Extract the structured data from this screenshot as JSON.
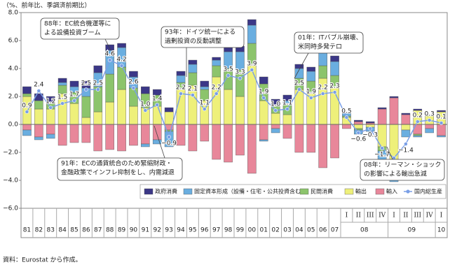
{
  "chart_data": {
    "type": "bar",
    "y_axis_label": "（%、前年比、季調済前期比）",
    "source": "資料：Eurostat から作成。",
    "categories": [
      "81",
      "82",
      "83",
      "84",
      "85",
      "86",
      "87",
      "88",
      "89",
      "90",
      "91",
      "92",
      "93",
      "94",
      "95",
      "96",
      "97",
      "98",
      "99",
      "00",
      "01",
      "02",
      "03",
      "04",
      "05",
      "06",
      "07",
      [
        "08",
        "I"
      ],
      [
        "08",
        "II"
      ],
      [
        "08",
        "III"
      ],
      [
        "08",
        "IV"
      ],
      [
        "09",
        "I"
      ],
      [
        "09",
        "II"
      ],
      [
        "09",
        "III"
      ],
      [
        "09",
        "IV"
      ],
      [
        "10",
        "I"
      ]
    ],
    "ylim": [
      -6,
      8
    ],
    "yticks": [
      {
        "value": 8,
        "label": "8.0"
      },
      {
        "value": 6,
        "label": "6.0"
      },
      {
        "value": 4,
        "label": "4.0"
      },
      {
        "value": 2,
        "label": "2.0"
      },
      {
        "value": 0,
        "label": "0.0"
      },
      {
        "value": -2,
        "label": "−2.0"
      },
      {
        "value": -4,
        "label": "−4.0"
      },
      {
        "value": -6,
        "label": "−6.0"
      }
    ],
    "grid": false,
    "series": [
      {
        "name": "政府消費",
        "color": "#3b3787",
        "values": [
          0.5,
          0.5,
          0.4,
          0.3,
          0.4,
          0.5,
          0.5,
          0.4,
          0.3,
          0.4,
          0.5,
          0.4,
          0.3,
          0.3,
          0.3,
          0.4,
          0.2,
          0.3,
          0.4,
          0.4,
          0.5,
          0.5,
          0.4,
          0.3,
          0.3,
          0.4,
          0.4,
          0.1,
          0.1,
          0.1,
          0.1,
          0.1,
          0.1,
          0.1,
          0.0,
          0.1
        ]
      },
      {
        "name": "固定資本形成（設備・住宅・公共投資含む）",
        "color": "#6aaee0",
        "values": [
          -0.4,
          -0.2,
          -0.3,
          0.2,
          0.4,
          0.6,
          1.0,
          1.7,
          1.4,
          0.8,
          -0.2,
          -0.3,
          -1.1,
          0.5,
          0.6,
          0.2,
          0.4,
          1.2,
          1.3,
          1.3,
          -0.1,
          -0.3,
          0.3,
          0.7,
          0.7,
          1.2,
          1.0,
          0.2,
          -0.3,
          -0.3,
          -0.8,
          -1.3,
          -0.5,
          -0.1,
          -0.3,
          -0.1
        ]
      },
      {
        "name": "民間消費",
        "color": "#8cc46c",
        "values": [
          0.2,
          0.6,
          0.5,
          0.6,
          0.8,
          1.5,
          1.8,
          2.0,
          1.6,
          1.3,
          1.0,
          0.8,
          -0.1,
          0.5,
          0.9,
          0.8,
          0.8,
          1.5,
          1.9,
          1.6,
          1.2,
          0.5,
          0.7,
          0.8,
          0.8,
          0.9,
          0.9,
          0.1,
          -0.1,
          0.0,
          -0.3,
          -0.3,
          0.0,
          -0.1,
          0.1,
          0.0
        ]
      },
      {
        "name": "輸出",
        "color": "#eef07a",
        "values": [
          2.0,
          1.1,
          1.1,
          2.2,
          1.5,
          0.5,
          0.9,
          1.6,
          2.5,
          1.3,
          1.2,
          1.3,
          0.9,
          2.5,
          2.8,
          1.7,
          3.4,
          2.5,
          2.0,
          4.2,
          1.7,
          0.8,
          0.7,
          2.5,
          2.3,
          3.3,
          2.6,
          0.5,
          -0.3,
          -0.2,
          -1.6,
          -2.5,
          -0.4,
          1.0,
          0.6,
          0.9
        ]
      },
      {
        "name": "輸入",
        "color": "#e8879a",
        "values": [
          -0.4,
          -0.9,
          -0.7,
          -1.5,
          -1.3,
          -1.3,
          -1.9,
          -1.8,
          -1.9,
          -1.5,
          -1.4,
          -1.1,
          -0.4,
          -1.5,
          -1.9,
          -1.2,
          -2.5,
          -2.7,
          -2.2,
          -3.5,
          -1.1,
          -0.3,
          -1.0,
          -2.0,
          -2.0,
          -3.1,
          -2.4,
          -0.3,
          0.2,
          0.1,
          1.1,
          1.9,
          0.7,
          -0.7,
          -0.3,
          -0.8
        ]
      },
      {
        "name": "国内総生産",
        "color": "#7a9fe6",
        "type": "line",
        "values": [
          0.9,
          2.4,
          1.2,
          1.5,
          1.7,
          2.5,
          2.5,
          4.6,
          4.2,
          2.6,
          1.0,
          1.4,
          -0.9,
          2.2,
          2.1,
          1.1,
          2.2,
          3.5,
          3.3,
          3.9,
          1.9,
          1.0,
          1.1,
          2.5,
          1.9,
          2.2,
          2.3,
          0.5,
          -0.6,
          -0.3,
          -1.7,
          -2.4,
          -1.4,
          0.2,
          0.3,
          0.1
        ],
        "value_labels": [
          "0.9",
          "2.4",
          "1.2",
          "1.5",
          "1.7",
          "2.5",
          "2.5",
          "4.6",
          "4.2",
          "2.6",
          "1.0",
          "1.4",
          "−0.9",
          "2.2",
          "2.1",
          "1.1",
          "2.2",
          "3.5",
          "3.3",
          "3.9",
          "1.9",
          "1.0",
          "1.1",
          "2.5",
          "1.9",
          "2.2",
          "2.3",
          "0.5",
          "−0.6",
          "−0.3",
          "−1.7",
          null,
          "−1.4",
          "0.2",
          "0.3",
          "0.1"
        ]
      }
    ],
    "annotations": [
      {
        "lines": [
          "88年：EC統合機運等に",
          "よる設備投資ブーム"
        ]
      },
      {
        "lines": [
          "93年：ドイツ統一による",
          "過剰投資の反動調整"
        ]
      },
      {
        "lines": [
          "01年：ITバブル崩壊、",
          "米同時多発テロ"
        ]
      },
      {
        "lines": [
          "91年：ECの通貨統合のため緊縮財政・",
          "金融政策でインフレ抑制をし、内需減退"
        ]
      },
      {
        "lines": [
          "08年：リーマン・ショック",
          "の影響による輸出急減"
        ]
      }
    ]
  }
}
